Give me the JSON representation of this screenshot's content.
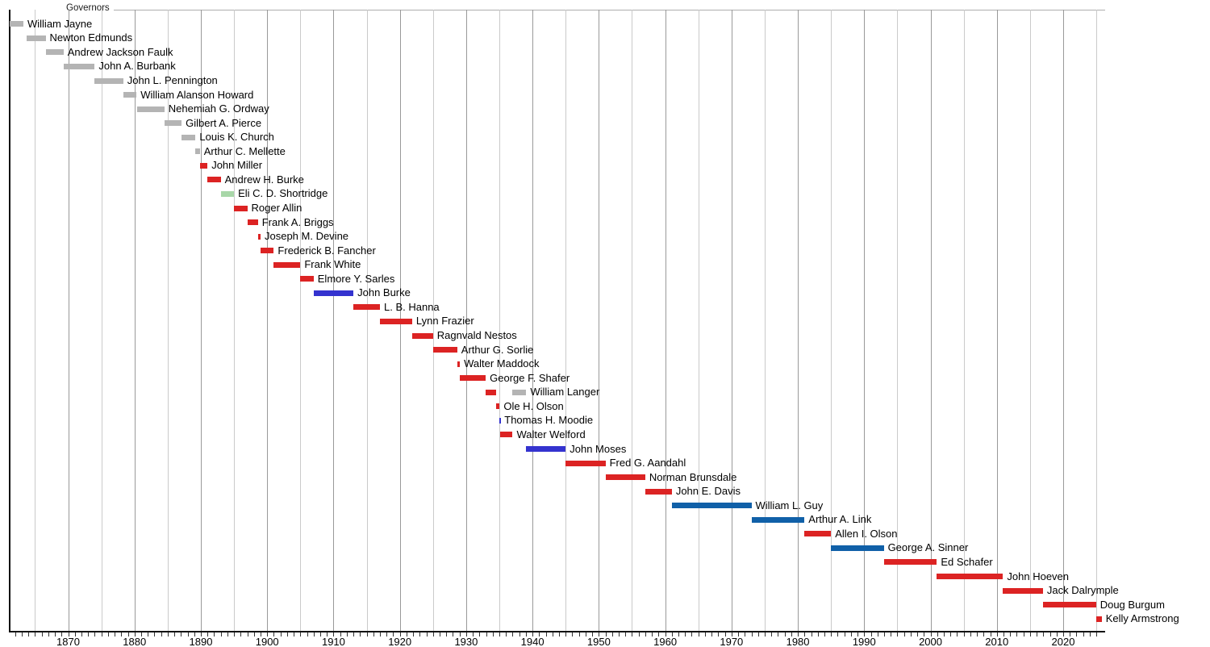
{
  "chart_data": {
    "type": "timeline",
    "title": "Governors",
    "x_axis": {
      "min": 1861,
      "max": 2026,
      "decade_labels": [
        1870,
        1880,
        1890,
        1900,
        1910,
        1920,
        1930,
        1940,
        1950,
        1960,
        1970,
        1980,
        1990,
        2000,
        2010,
        2020
      ],
      "gridline_interval_years": 5,
      "minor_tick_interval_years": 1,
      "grid": true
    },
    "party_colors": {
      "territorial": "#b4b4b4",
      "republican": "#dc2323",
      "democratic": "#3433cf",
      "democratic_npl": "#1060a8",
      "populist": "#a8d7a8",
      "independent": "#b4b4b4"
    },
    "rows": [
      {
        "name": "William Jayne",
        "terms": [
          {
            "start": 1861.2,
            "end": 1863.25,
            "party": "territorial"
          }
        ]
      },
      {
        "name": "Newton Edmunds",
        "terms": [
          {
            "start": 1863.75,
            "end": 1866.6,
            "party": "territorial"
          }
        ]
      },
      {
        "name": "Andrew Jackson Faulk",
        "terms": [
          {
            "start": 1866.6,
            "end": 1869.3,
            "party": "territorial"
          }
        ]
      },
      {
        "name": "John A. Burbank",
        "terms": [
          {
            "start": 1869.3,
            "end": 1874.0,
            "party": "territorial"
          }
        ]
      },
      {
        "name": "John L. Pennington",
        "terms": [
          {
            "start": 1874.0,
            "end": 1878.3,
            "party": "territorial"
          }
        ]
      },
      {
        "name": "William Alanson Howard",
        "terms": [
          {
            "start": 1878.3,
            "end": 1880.3,
            "party": "territorial"
          }
        ]
      },
      {
        "name": "Nehemiah G. Ordway",
        "terms": [
          {
            "start": 1880.45,
            "end": 1884.5,
            "party": "territorial"
          }
        ]
      },
      {
        "name": "Gilbert A. Pierce",
        "terms": [
          {
            "start": 1884.5,
            "end": 1887.1,
            "party": "territorial"
          }
        ]
      },
      {
        "name": "Louis K. Church",
        "terms": [
          {
            "start": 1887.1,
            "end": 1889.2,
            "party": "territorial"
          }
        ]
      },
      {
        "name": "Arthur C. Mellette",
        "terms": [
          {
            "start": 1889.2,
            "end": 1889.85,
            "party": "territorial"
          }
        ]
      },
      {
        "name": "John Miller",
        "terms": [
          {
            "start": 1889.85,
            "end": 1891.0,
            "party": "republican"
          }
        ]
      },
      {
        "name": "Andrew H. Burke",
        "terms": [
          {
            "start": 1891.0,
            "end": 1893.0,
            "party": "republican"
          }
        ]
      },
      {
        "name": "Eli C. D. Shortridge",
        "terms": [
          {
            "start": 1893.0,
            "end": 1895.0,
            "party": "populist"
          }
        ]
      },
      {
        "name": "Roger Allin",
        "terms": [
          {
            "start": 1895.0,
            "end": 1897.0,
            "party": "republican"
          }
        ]
      },
      {
        "name": "Frank A. Briggs",
        "terms": [
          {
            "start": 1897.0,
            "end": 1898.6,
            "party": "republican"
          }
        ]
      },
      {
        "name": "Joseph M. Devine",
        "terms": [
          {
            "start": 1898.6,
            "end": 1899.0,
            "party": "republican"
          }
        ]
      },
      {
        "name": "Frederick B. Fancher",
        "terms": [
          {
            "start": 1899.0,
            "end": 1901.0,
            "party": "republican"
          }
        ]
      },
      {
        "name": "Frank White",
        "terms": [
          {
            "start": 1901.0,
            "end": 1905.0,
            "party": "republican"
          }
        ]
      },
      {
        "name": "Elmore Y. Sarles",
        "terms": [
          {
            "start": 1905.0,
            "end": 1907.0,
            "party": "republican"
          }
        ]
      },
      {
        "name": "John Burke",
        "terms": [
          {
            "start": 1907.0,
            "end": 1913.0,
            "party": "democratic"
          }
        ]
      },
      {
        "name": "L. B. Hanna",
        "terms": [
          {
            "start": 1913.0,
            "end": 1917.0,
            "party": "republican"
          }
        ]
      },
      {
        "name": "Lynn Frazier",
        "terms": [
          {
            "start": 1917.0,
            "end": 1921.85,
            "party": "republican"
          }
        ]
      },
      {
        "name": "Ragnvald Nestos",
        "terms": [
          {
            "start": 1921.85,
            "end": 1925.0,
            "party": "republican"
          }
        ]
      },
      {
        "name": "Arthur G. Sorlie",
        "terms": [
          {
            "start": 1925.0,
            "end": 1928.65,
            "party": "republican"
          }
        ]
      },
      {
        "name": "Walter Maddock",
        "terms": [
          {
            "start": 1928.65,
            "end": 1929.05,
            "party": "republican"
          }
        ]
      },
      {
        "name": "George F. Shafer",
        "terms": [
          {
            "start": 1929.05,
            "end": 1932.95,
            "party": "republican"
          }
        ]
      },
      {
        "name": "William Langer",
        "terms": [
          {
            "start": 1932.95,
            "end": 1934.55,
            "party": "republican"
          },
          {
            "start": 1937.0,
            "end": 1939.05,
            "party": "independent"
          }
        ]
      },
      {
        "name": "Ole H. Olson",
        "terms": [
          {
            "start": 1934.55,
            "end": 1935.04,
            "party": "republican"
          }
        ]
      },
      {
        "name": "Thomas H. Moodie",
        "terms": [
          {
            "start": 1935.03,
            "end": 1935.15,
            "party": "democratic"
          }
        ]
      },
      {
        "name": "Walter Welford",
        "terms": [
          {
            "start": 1935.1,
            "end": 1937.0,
            "party": "republican"
          }
        ]
      },
      {
        "name": "John Moses",
        "terms": [
          {
            "start": 1939.05,
            "end": 1945.0,
            "party": "democratic"
          }
        ]
      },
      {
        "name": "Fred G. Aandahl",
        "terms": [
          {
            "start": 1945.0,
            "end": 1951.0,
            "party": "republican"
          }
        ]
      },
      {
        "name": "Norman Brunsdale",
        "terms": [
          {
            "start": 1951.0,
            "end": 1957.0,
            "party": "republican"
          }
        ]
      },
      {
        "name": "John E. Davis",
        "terms": [
          {
            "start": 1957.0,
            "end": 1961.0,
            "party": "republican"
          }
        ]
      },
      {
        "name": "William L. Guy",
        "terms": [
          {
            "start": 1961.0,
            "end": 1973.0,
            "party": "democratic_npl"
          }
        ]
      },
      {
        "name": "Arthur A. Link",
        "terms": [
          {
            "start": 1973.0,
            "end": 1981.0,
            "party": "democratic_npl"
          }
        ]
      },
      {
        "name": "Allen I. Olson",
        "terms": [
          {
            "start": 1981.0,
            "end": 1985.0,
            "party": "republican"
          }
        ]
      },
      {
        "name": "George A. Sinner",
        "terms": [
          {
            "start": 1985.0,
            "end": 1992.95,
            "party": "democratic_npl"
          }
        ]
      },
      {
        "name": "Ed Schafer",
        "terms": [
          {
            "start": 1992.95,
            "end": 2000.95,
            "party": "republican"
          }
        ]
      },
      {
        "name": "John Hoeven",
        "terms": [
          {
            "start": 2000.95,
            "end": 2010.93,
            "party": "republican"
          }
        ]
      },
      {
        "name": "Jack Dalrymple",
        "terms": [
          {
            "start": 2010.93,
            "end": 2016.95,
            "party": "republican"
          }
        ]
      },
      {
        "name": "Doug Burgum",
        "terms": [
          {
            "start": 2016.95,
            "end": 2024.95,
            "party": "republican"
          }
        ]
      },
      {
        "name": "Kelly Armstrong",
        "terms": [
          {
            "start": 2024.95,
            "end": 2025.8,
            "party": "republican"
          }
        ]
      }
    ]
  }
}
